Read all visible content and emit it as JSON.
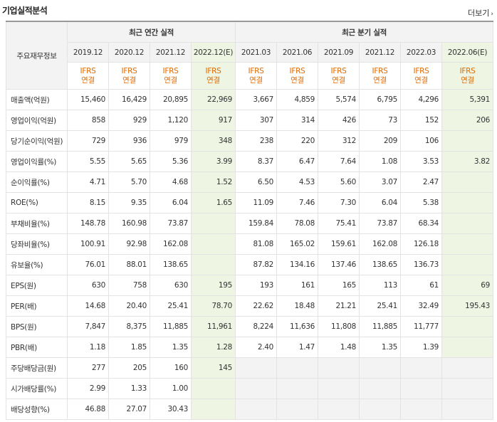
{
  "title": "기업실적분석",
  "more_label": "더보기",
  "more_icon": "chevron-right-icon",
  "row_header": "주요재무정보",
  "annual_header": "최근 연간 실적",
  "quarter_header": "최근 분기 실적",
  "periods": [
    "2019.12",
    "2020.12",
    "2021.12",
    "2022.12(E)",
    "2021.03",
    "2021.06",
    "2021.09",
    "2021.12",
    "2022.03",
    "2022.06(E)"
  ],
  "ifrs_line1": "IFRS",
  "ifrs_line2": "연결",
  "rows": [
    {
      "label": "매출액(억원)",
      "values": [
        "15,460",
        "16,429",
        "20,895",
        "22,969",
        "3,667",
        "4,859",
        "5,574",
        "6,795",
        "4,296",
        "5,391"
      ]
    },
    {
      "label": "영업이익(억원)",
      "values": [
        "858",
        "929",
        "1,120",
        "917",
        "307",
        "314",
        "426",
        "73",
        "152",
        "206"
      ]
    },
    {
      "label": "당기순이익(억원)",
      "values": [
        "729",
        "936",
        "979",
        "348",
        "238",
        "220",
        "312",
        "209",
        "106",
        ""
      ]
    },
    {
      "label": "영업이익률(%)",
      "values": [
        "5.55",
        "5.65",
        "5.36",
        "3.99",
        "8.37",
        "6.47",
        "7.64",
        "1.08",
        "3.53",
        "3.82"
      ]
    },
    {
      "label": "순이익률(%)",
      "values": [
        "4.71",
        "5.70",
        "4.68",
        "1.52",
        "6.50",
        "4.53",
        "5.60",
        "3.07",
        "2.47",
        ""
      ]
    },
    {
      "label": "ROE(%)",
      "values": [
        "8.15",
        "9.35",
        "6.04",
        "1.65",
        "11.09",
        "7.46",
        "7.30",
        "6.04",
        "5.38",
        ""
      ]
    },
    {
      "label": "부채비율(%)",
      "values": [
        "148.78",
        "160.98",
        "73.87",
        "",
        "159.84",
        "78.08",
        "75.41",
        "73.87",
        "68.34",
        ""
      ]
    },
    {
      "label": "당좌비율(%)",
      "values": [
        "100.91",
        "92.98",
        "162.08",
        "",
        "81.08",
        "165.02",
        "159.61",
        "162.08",
        "126.18",
        ""
      ]
    },
    {
      "label": "유보율(%)",
      "values": [
        "76.01",
        "88.01",
        "138.65",
        "",
        "87.82",
        "134.16",
        "137.46",
        "138.65",
        "136.73",
        ""
      ]
    },
    {
      "label": "EPS(원)",
      "values": [
        "630",
        "758",
        "630",
        "195",
        "193",
        "161",
        "165",
        "113",
        "61",
        "69"
      ]
    },
    {
      "label": "PER(배)",
      "values": [
        "14.68",
        "20.40",
        "25.41",
        "78.70",
        "22.62",
        "18.48",
        "21.21",
        "25.41",
        "32.49",
        "195.43"
      ]
    },
    {
      "label": "BPS(원)",
      "values": [
        "7,847",
        "8,375",
        "11,885",
        "11,961",
        "8,224",
        "11,636",
        "11,808",
        "11,885",
        "11,777",
        ""
      ]
    },
    {
      "label": "PBR(배)",
      "values": [
        "1.18",
        "1.85",
        "1.35",
        "1.28",
        "2.40",
        "1.47",
        "1.48",
        "1.35",
        "1.39",
        ""
      ]
    },
    {
      "label": "주당배당금(원)",
      "values": [
        "277",
        "205",
        "160",
        "145",
        "",
        "",
        "",
        "",
        "",
        ""
      ]
    },
    {
      "label": "시가배당률(%)",
      "values": [
        "2.99",
        "1.33",
        "1.00",
        "",
        "",
        "",
        "",
        "",
        "",
        ""
      ]
    },
    {
      "label": "배당성향(%)",
      "values": [
        "46.88",
        "27.07",
        "30.43",
        "",
        "",
        "",
        "",
        "",
        "",
        ""
      ]
    }
  ]
}
